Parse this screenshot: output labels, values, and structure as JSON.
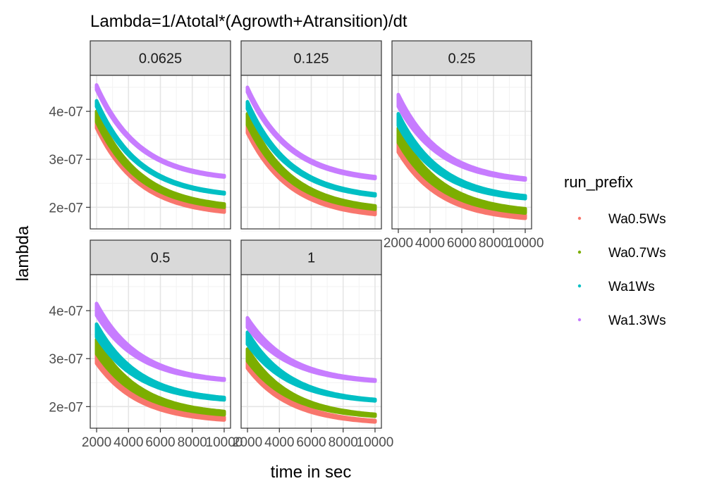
{
  "chart_data": {
    "type": "scatter",
    "title": "Lambda=1/Atotal*(Agrowth+Atransition)/dt",
    "xlabel": "time in sec",
    "ylabel": "lambda",
    "legend_title": "run_prefix",
    "legend_position": "right",
    "grid": true,
    "xlim": [
      1600,
      10400
    ],
    "ylim": [
      1.55e-07,
      4.75e-07
    ],
    "x_ticks": [
      2000,
      4000,
      6000,
      8000,
      10000
    ],
    "x_tick_labels": [
      "2000",
      "4000",
      "6000",
      "8000",
      "10000"
    ],
    "y_ticks": [
      2e-07,
      3e-07,
      4e-07
    ],
    "y_tick_labels": [
      "2e-07",
      "3e-07",
      "4e-07"
    ],
    "series": [
      {
        "name": "Wa0.5Ws",
        "color": "#F8766D"
      },
      {
        "name": "Wa0.7Ws",
        "color": "#7CAE00"
      },
      {
        "name": "Wa1Ws",
        "color": "#00BFC4"
      },
      {
        "name": "Wa1.3Ws",
        "color": "#C77CFF"
      }
    ],
    "panels": [
      {
        "label": "0.0625",
        "x_start": 2000,
        "x_end": 10000,
        "series_values": [
          {
            "name": "Wa0.5Ws",
            "start_min": 3.65e-07,
            "start_max": 3.75e-07,
            "end_min": 1.9e-07,
            "end_max": 1.97e-07
          },
          {
            "name": "Wa0.7Ws",
            "start_min": 3.78e-07,
            "start_max": 4e-07,
            "end_min": 2e-07,
            "end_max": 2.07e-07
          },
          {
            "name": "Wa1Ws",
            "start_min": 4.1e-07,
            "start_max": 4.22e-07,
            "end_min": 2.28e-07,
            "end_max": 2.31e-07
          },
          {
            "name": "Wa1.3Ws",
            "start_min": 4.45e-07,
            "start_max": 4.55e-07,
            "end_min": 2.63e-07,
            "end_max": 2.66e-07
          }
        ]
      },
      {
        "label": "0.125",
        "x_start": 2000,
        "x_end": 10000,
        "series_values": [
          {
            "name": "Wa0.5Ws",
            "start_min": 3.55e-07,
            "start_max": 3.7e-07,
            "end_min": 1.85e-07,
            "end_max": 1.93e-07
          },
          {
            "name": "Wa0.7Ws",
            "start_min": 3.72e-07,
            "start_max": 3.95e-07,
            "end_min": 1.96e-07,
            "end_max": 2.03e-07
          },
          {
            "name": "Wa1Ws",
            "start_min": 4.05e-07,
            "start_max": 4.2e-07,
            "end_min": 2.24e-07,
            "end_max": 2.28e-07
          },
          {
            "name": "Wa1.3Ws",
            "start_min": 4.4e-07,
            "start_max": 4.5e-07,
            "end_min": 2.6e-07,
            "end_max": 2.64e-07
          }
        ]
      },
      {
        "label": "0.25",
        "x_start": 2000,
        "x_end": 10000,
        "series_values": [
          {
            "name": "Wa0.5Ws",
            "start_min": 3.15e-07,
            "start_max": 3.35e-07,
            "end_min": 1.77e-07,
            "end_max": 1.84e-07
          },
          {
            "name": "Wa0.7Ws",
            "start_min": 3.35e-07,
            "start_max": 3.65e-07,
            "end_min": 1.88e-07,
            "end_max": 1.97e-07
          },
          {
            "name": "Wa1Ws",
            "start_min": 3.7e-07,
            "start_max": 3.95e-07,
            "end_min": 2.18e-07,
            "end_max": 2.24e-07
          },
          {
            "name": "Wa1.3Ws",
            "start_min": 4.1e-07,
            "start_max": 4.35e-07,
            "end_min": 2.57e-07,
            "end_max": 2.61e-07
          }
        ]
      },
      {
        "label": "0.5",
        "x_start": 2000,
        "x_end": 10000,
        "series_values": [
          {
            "name": "Wa0.5Ws",
            "start_min": 2.9e-07,
            "start_max": 3.1e-07,
            "end_min": 1.72e-07,
            "end_max": 1.78e-07
          },
          {
            "name": "Wa0.7Ws",
            "start_min": 3.1e-07,
            "start_max": 3.4e-07,
            "end_min": 1.83e-07,
            "end_max": 1.9e-07
          },
          {
            "name": "Wa1Ws",
            "start_min": 3.45e-07,
            "start_max": 3.72e-07,
            "end_min": 2.14e-07,
            "end_max": 2.19e-07
          },
          {
            "name": "Wa1.3Ws",
            "start_min": 3.9e-07,
            "start_max": 4.15e-07,
            "end_min": 2.55e-07,
            "end_max": 2.58e-07
          }
        ]
      },
      {
        "label": "1",
        "x_start": 2000,
        "x_end": 10000,
        "series_values": [
          {
            "name": "Wa0.5Ws",
            "start_min": 2.8e-07,
            "start_max": 2.95e-07,
            "end_min": 1.68e-07,
            "end_max": 1.71e-07
          },
          {
            "name": "Wa0.7Ws",
            "start_min": 2.95e-07,
            "start_max": 3.2e-07,
            "end_min": 1.8e-07,
            "end_max": 1.84e-07
          },
          {
            "name": "Wa1Ws",
            "start_min": 3.3e-07,
            "start_max": 3.55e-07,
            "end_min": 2.12e-07,
            "end_max": 2.15e-07
          },
          {
            "name": "Wa1.3Ws",
            "start_min": 3.65e-07,
            "start_max": 3.85e-07,
            "end_min": 2.53e-07,
            "end_max": 2.56e-07
          }
        ]
      }
    ]
  }
}
